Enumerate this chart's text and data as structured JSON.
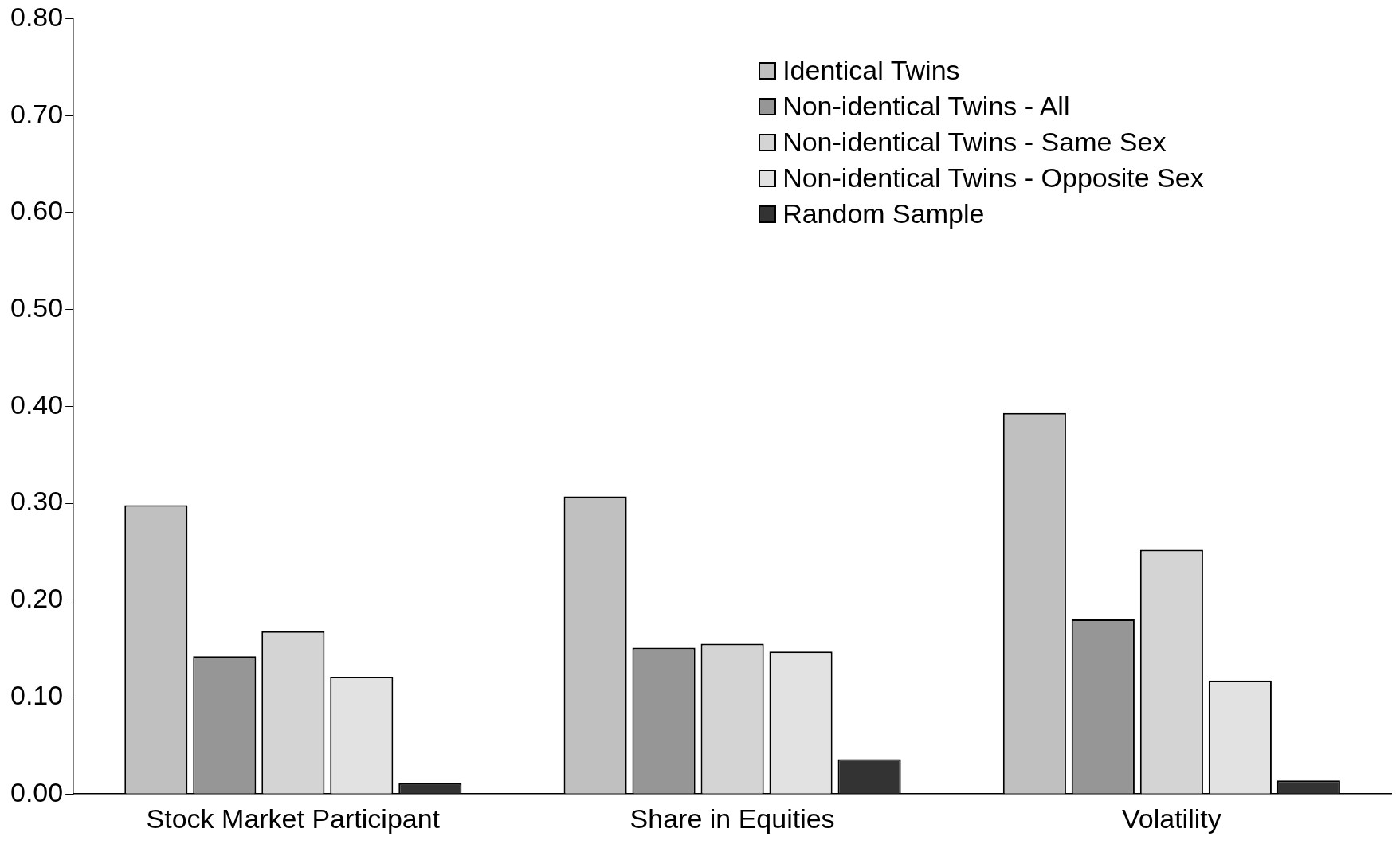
{
  "chart_data": {
    "type": "bar",
    "categories": [
      "Stock Market Participant",
      "Share in Equities",
      "Volatility"
    ],
    "series": [
      {
        "name": "Identical Twins",
        "color": "#c0c0c0",
        "values": [
          0.298,
          0.307,
          0.393
        ]
      },
      {
        "name": "Non-identical Twins - All",
        "color": "#969696",
        "values": [
          0.142,
          0.151,
          0.18
        ]
      },
      {
        "name": "Non-identical Twins - Same Sex",
        "color": "#d4d4d4",
        "values": [
          0.168,
          0.155,
          0.252
        ]
      },
      {
        "name": "Non-identical Twins - Opposite Sex",
        "color": "#e2e2e2",
        "values": [
          0.121,
          0.147,
          0.117
        ]
      },
      {
        "name": "Random Sample",
        "color": "#333333",
        "values": [
          0.011,
          0.036,
          0.014
        ]
      }
    ],
    "ylim": [
      0,
      0.8
    ],
    "yticks": [
      {
        "value": 0,
        "label": "0.00"
      },
      {
        "value": 0.1,
        "label": "0.10"
      },
      {
        "value": 0.2,
        "label": "0.20"
      },
      {
        "value": 0.3,
        "label": "0.30"
      },
      {
        "value": 0.4,
        "label": "0.40"
      },
      {
        "value": 0.5,
        "label": "0.50"
      },
      {
        "value": 0.6,
        "label": "0.60"
      },
      {
        "value": 0.7,
        "label": "0.70"
      },
      {
        "value": 0.8,
        "label": "0.80"
      }
    ],
    "grid": false,
    "legend": "top right"
  }
}
